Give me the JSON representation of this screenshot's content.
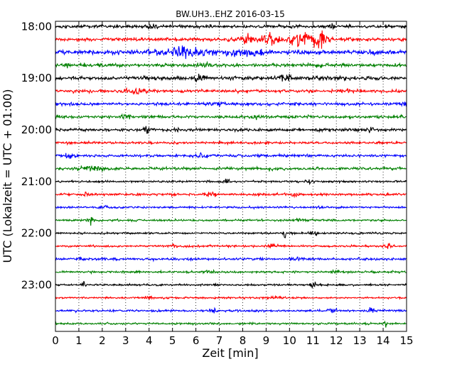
{
  "chart_data": {
    "type": "line",
    "title": "BW.UH3..EHZ 2016-03-15",
    "xlabel": "Zeit  [min]",
    "ylabel": "UTC (Lokalzeit = UTC + 01:00)",
    "xlim": [
      0,
      15
    ],
    "x_ticks": [
      0,
      1,
      2,
      3,
      4,
      5,
      6,
      7,
      8,
      9,
      10,
      11,
      12,
      13,
      14,
      15
    ],
    "x_tick_labels": [
      "0",
      "1",
      "2",
      "3",
      "4",
      "5",
      "6",
      "7",
      "8",
      "9",
      "10",
      "11",
      "12",
      "13",
      "14",
      "15"
    ],
    "y_tick_labels": [
      "18:00",
      "19:00",
      "20:00",
      "21:00",
      "22:00",
      "23:00"
    ],
    "minutes_per_trace": 15,
    "grid": "vertical dotted",
    "trace_colors": [
      "#000000",
      "#ff0000",
      "#0000ff",
      "#008000"
    ],
    "series": [
      {
        "start": "18:00",
        "amplitude": 0.45,
        "events": [
          {
            "t": 4.1,
            "a": 0.4
          },
          {
            "t": 11.8,
            "a": 0.35
          }
        ]
      },
      {
        "start": "18:15",
        "amplitude": 0.5,
        "events": [
          {
            "t": 8.2,
            "a": 1.8,
            "w": 0.5
          },
          {
            "t": 9.2,
            "a": 1.6,
            "w": 0.6
          },
          {
            "t": 10.6,
            "a": 1.9,
            "w": 0.9
          },
          {
            "t": 11.3,
            "a": 1.6,
            "w": 0.6
          }
        ]
      },
      {
        "start": "18:30",
        "amplitude": 0.6,
        "events": [
          {
            "t": 5.5,
            "a": 1.0,
            "w": 2.0
          },
          {
            "t": 8.0,
            "a": 0.8,
            "w": 1.2
          },
          {
            "t": 13.5,
            "a": 0.5
          }
        ]
      },
      {
        "start": "18:45",
        "amplitude": 0.5,
        "events": [
          {
            "t": 0.5,
            "a": 0.5
          },
          {
            "t": 6.3,
            "a": 0.5
          },
          {
            "t": 11.3,
            "a": 0.4
          }
        ]
      },
      {
        "start": "19:00",
        "amplitude": 0.55,
        "events": [
          {
            "t": 6.2,
            "a": 0.6
          },
          {
            "t": 9.8,
            "a": 0.7,
            "w": 0.6
          }
        ]
      },
      {
        "start": "19:15",
        "amplitude": 0.45,
        "events": [
          {
            "t": 3.4,
            "a": 0.6,
            "w": 0.8
          },
          {
            "t": 12.5,
            "a": 0.4
          }
        ]
      },
      {
        "start": "19:30",
        "amplitude": 0.45,
        "events": [
          {
            "t": 7.0,
            "a": 0.4
          },
          {
            "t": 14.9,
            "a": 0.9,
            "w": 0.2
          }
        ]
      },
      {
        "start": "19:45",
        "amplitude": 0.4,
        "events": [
          {
            "t": 3.0,
            "a": 0.5
          },
          {
            "t": 8.5,
            "a": 0.3
          }
        ]
      },
      {
        "start": "20:00",
        "amplitude": 0.45,
        "events": [
          {
            "t": 3.9,
            "a": 0.7,
            "w": 0.2
          },
          {
            "t": 13.4,
            "a": 0.4
          }
        ]
      },
      {
        "start": "20:15",
        "amplitude": 0.35,
        "events": [
          {
            "t": 9.0,
            "a": 0.3
          }
        ]
      },
      {
        "start": "20:30",
        "amplitude": 0.4,
        "events": [
          {
            "t": 0.6,
            "a": 0.6
          },
          {
            "t": 6.3,
            "a": 0.5
          }
        ]
      },
      {
        "start": "20:45",
        "amplitude": 0.4,
        "events": [
          {
            "t": 1.5,
            "a": 0.5,
            "w": 1.2
          },
          {
            "t": 9.2,
            "a": 0.3
          }
        ]
      },
      {
        "start": "21:00",
        "amplitude": 0.3,
        "events": [
          {
            "t": 7.3,
            "a": 0.5
          },
          {
            "t": 10.9,
            "a": 0.4
          }
        ]
      },
      {
        "start": "21:15",
        "amplitude": 0.35,
        "events": [
          {
            "t": 1.3,
            "a": 0.8,
            "w": 0.2
          },
          {
            "t": 6.7,
            "a": 0.7
          },
          {
            "t": 10.2,
            "a": 0.5
          }
        ]
      },
      {
        "start": "21:30",
        "amplitude": 0.3,
        "events": [
          {
            "t": 2.0,
            "a": 0.4
          },
          {
            "t": 11.4,
            "a": 0.3
          }
        ]
      },
      {
        "start": "21:45",
        "amplitude": 0.3,
        "events": [
          {
            "t": 1.5,
            "a": 1.0,
            "w": 0.2
          },
          {
            "t": 10.4,
            "a": 0.3
          }
        ]
      },
      {
        "start": "22:00",
        "amplitude": 0.28,
        "events": [
          {
            "t": 9.8,
            "a": 1.2,
            "w": 0.1
          },
          {
            "t": 11.1,
            "a": 0.5
          }
        ]
      },
      {
        "start": "22:15",
        "amplitude": 0.3,
        "events": [
          {
            "t": 5.0,
            "a": 0.4
          },
          {
            "t": 9.3,
            "a": 0.5
          },
          {
            "t": 14.2,
            "a": 0.5
          }
        ]
      },
      {
        "start": "22:30",
        "amplitude": 0.35,
        "events": [
          {
            "t": 1.0,
            "a": 0.4
          },
          {
            "t": 10.3,
            "a": 0.6
          }
        ]
      },
      {
        "start": "22:45",
        "amplitude": 0.3,
        "events": [
          {
            "t": 6.5,
            "a": 0.4
          },
          {
            "t": 12.0,
            "a": 0.3
          }
        ]
      },
      {
        "start": "23:00",
        "amplitude": 0.28,
        "events": [
          {
            "t": 1.2,
            "a": 1.3,
            "w": 0.1
          },
          {
            "t": 11.0,
            "a": 0.5
          }
        ]
      },
      {
        "start": "23:15",
        "amplitude": 0.28,
        "events": [
          {
            "t": 4.0,
            "a": 0.3
          },
          {
            "t": 9.5,
            "a": 0.3
          }
        ]
      },
      {
        "start": "23:30",
        "amplitude": 0.32,
        "events": [
          {
            "t": 6.7,
            "a": 0.6
          },
          {
            "t": 11.8,
            "a": 0.5
          },
          {
            "t": 13.5,
            "a": 0.5
          }
        ]
      },
      {
        "start": "23:45",
        "amplitude": 0.3,
        "events": [
          {
            "t": 14.1,
            "a": 0.9,
            "w": 0.1
          }
        ]
      }
    ]
  }
}
